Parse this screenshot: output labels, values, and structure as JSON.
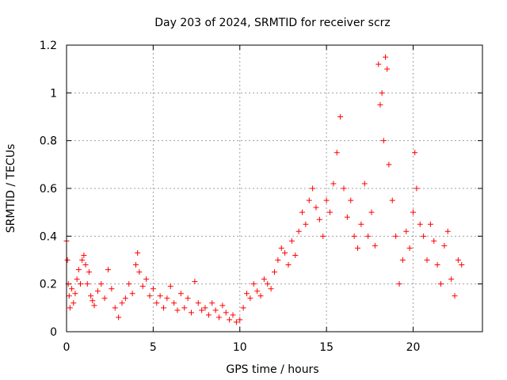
{
  "chart_data": {
    "type": "scatter",
    "title": "Day 203 of 2024, SRMTID for receiver scrz",
    "xlabel": "GPS time / hours",
    "ylabel": "SRMTID / TECUs",
    "xlim": [
      0,
      24
    ],
    "ylim": [
      0,
      1.2
    ],
    "xticks": [
      0,
      5,
      10,
      15,
      20
    ],
    "xtick_labels": [
      "0",
      "5",
      "10",
      "15",
      "20"
    ],
    "yticks": [
      0,
      0.2,
      0.4,
      0.6,
      0.8,
      1.0,
      1.2
    ],
    "ytick_labels": [
      "0",
      "0.2",
      "0.4",
      "0.6",
      "0.8",
      "1",
      "1.2"
    ],
    "grid": true,
    "marker": "+",
    "color": "#ff0000",
    "series": [
      {
        "name": "SRMTID",
        "x": [
          0.0,
          0.05,
          0.1,
          0.15,
          0.2,
          0.3,
          0.4,
          0.5,
          0.6,
          0.7,
          0.8,
          0.9,
          1.0,
          1.1,
          1.2,
          1.3,
          1.4,
          1.5,
          1.6,
          1.8,
          2.0,
          2.2,
          2.4,
          2.6,
          2.8,
          3.0,
          3.2,
          3.4,
          3.6,
          3.8,
          4.0,
          4.1,
          4.2,
          4.4,
          4.6,
          4.8,
          5.0,
          5.2,
          5.4,
          5.6,
          5.8,
          6.0,
          6.2,
          6.4,
          6.6,
          6.8,
          7.0,
          7.2,
          7.4,
          7.6,
          7.8,
          8.0,
          8.2,
          8.4,
          8.6,
          8.8,
          9.0,
          9.2,
          9.4,
          9.6,
          9.8,
          10.0,
          10.2,
          10.4,
          10.6,
          10.8,
          11.0,
          11.2,
          11.4,
          11.6,
          11.8,
          12.0,
          12.2,
          12.4,
          12.6,
          12.8,
          13.0,
          13.2,
          13.4,
          13.6,
          13.8,
          14.0,
          14.2,
          14.4,
          14.6,
          14.8,
          15.0,
          15.2,
          15.4,
          15.6,
          15.8,
          16.0,
          16.2,
          16.4,
          16.6,
          16.8,
          17.0,
          17.2,
          17.4,
          17.6,
          17.8,
          18.0,
          18.1,
          18.2,
          18.3,
          18.4,
          18.5,
          18.6,
          18.8,
          19.0,
          19.2,
          19.4,
          19.6,
          19.8,
          20.0,
          20.1,
          20.2,
          20.4,
          20.6,
          20.8,
          21.0,
          21.2,
          21.4,
          21.6,
          21.8,
          22.0,
          22.2,
          22.4,
          22.6,
          22.8
        ],
        "y": [
          0.38,
          0.3,
          0.2,
          0.15,
          0.1,
          0.18,
          0.12,
          0.16,
          0.22,
          0.26,
          0.2,
          0.3,
          0.32,
          0.28,
          0.2,
          0.25,
          0.15,
          0.13,
          0.11,
          0.17,
          0.2,
          0.14,
          0.26,
          0.18,
          0.1,
          0.06,
          0.12,
          0.14,
          0.2,
          0.16,
          0.28,
          0.33,
          0.25,
          0.19,
          0.22,
          0.15,
          0.18,
          0.12,
          0.15,
          0.1,
          0.14,
          0.19,
          0.12,
          0.09,
          0.16,
          0.1,
          0.14,
          0.08,
          0.21,
          0.12,
          0.09,
          0.1,
          0.07,
          0.12,
          0.09,
          0.06,
          0.11,
          0.08,
          0.05,
          0.07,
          0.04,
          0.05,
          0.1,
          0.16,
          0.14,
          0.2,
          0.17,
          0.15,
          0.22,
          0.2,
          0.18,
          0.25,
          0.3,
          0.35,
          0.33,
          0.28,
          0.38,
          0.32,
          0.42,
          0.5,
          0.45,
          0.55,
          0.6,
          0.52,
          0.47,
          0.4,
          0.55,
          0.5,
          0.62,
          0.75,
          0.9,
          0.6,
          0.48,
          0.55,
          0.4,
          0.35,
          0.45,
          0.62,
          0.4,
          0.5,
          0.36,
          1.12,
          0.95,
          1.0,
          0.8,
          1.15,
          1.1,
          0.7,
          0.55,
          0.4,
          0.2,
          0.3,
          0.42,
          0.35,
          0.5,
          0.75,
          0.6,
          0.45,
          0.4,
          0.3,
          0.45,
          0.38,
          0.28,
          0.2,
          0.36,
          0.42,
          0.22,
          0.15,
          0.3,
          0.28
        ]
      }
    ]
  }
}
